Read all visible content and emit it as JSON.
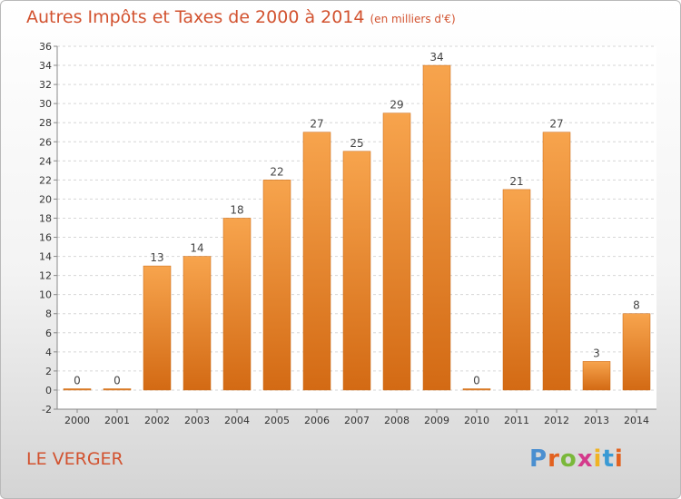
{
  "title": "Autres Impôts et Taxes de 2000 à 2014",
  "subtitle": "(en milliers d'€)",
  "place": "LE VERGER",
  "logo": {
    "text": "Proxiti",
    "colors": [
      "#4a8fd0",
      "#e2611f",
      "#7ab83a",
      "#d43a8c",
      "#f0b323",
      "#3a9ad4",
      "#e2611f"
    ]
  },
  "colors": {
    "title": "#d2522f",
    "bar_top": "#f7a44d",
    "bar_bottom": "#d36a14"
  },
  "chart_data": {
    "type": "bar",
    "categories": [
      "2000",
      "2001",
      "2002",
      "2003",
      "2004",
      "2005",
      "2006",
      "2007",
      "2008",
      "2009",
      "2010",
      "2011",
      "2012",
      "2013",
      "2014"
    ],
    "values": [
      0,
      0,
      13,
      14,
      18,
      22,
      27,
      25,
      29,
      34,
      0,
      21,
      27,
      3,
      8
    ],
    "ylim": [
      -2,
      36
    ],
    "yticks": [
      -2,
      0,
      2,
      4,
      6,
      8,
      10,
      12,
      14,
      16,
      18,
      20,
      22,
      24,
      26,
      28,
      30,
      32,
      34,
      36
    ],
    "grid": true
  }
}
